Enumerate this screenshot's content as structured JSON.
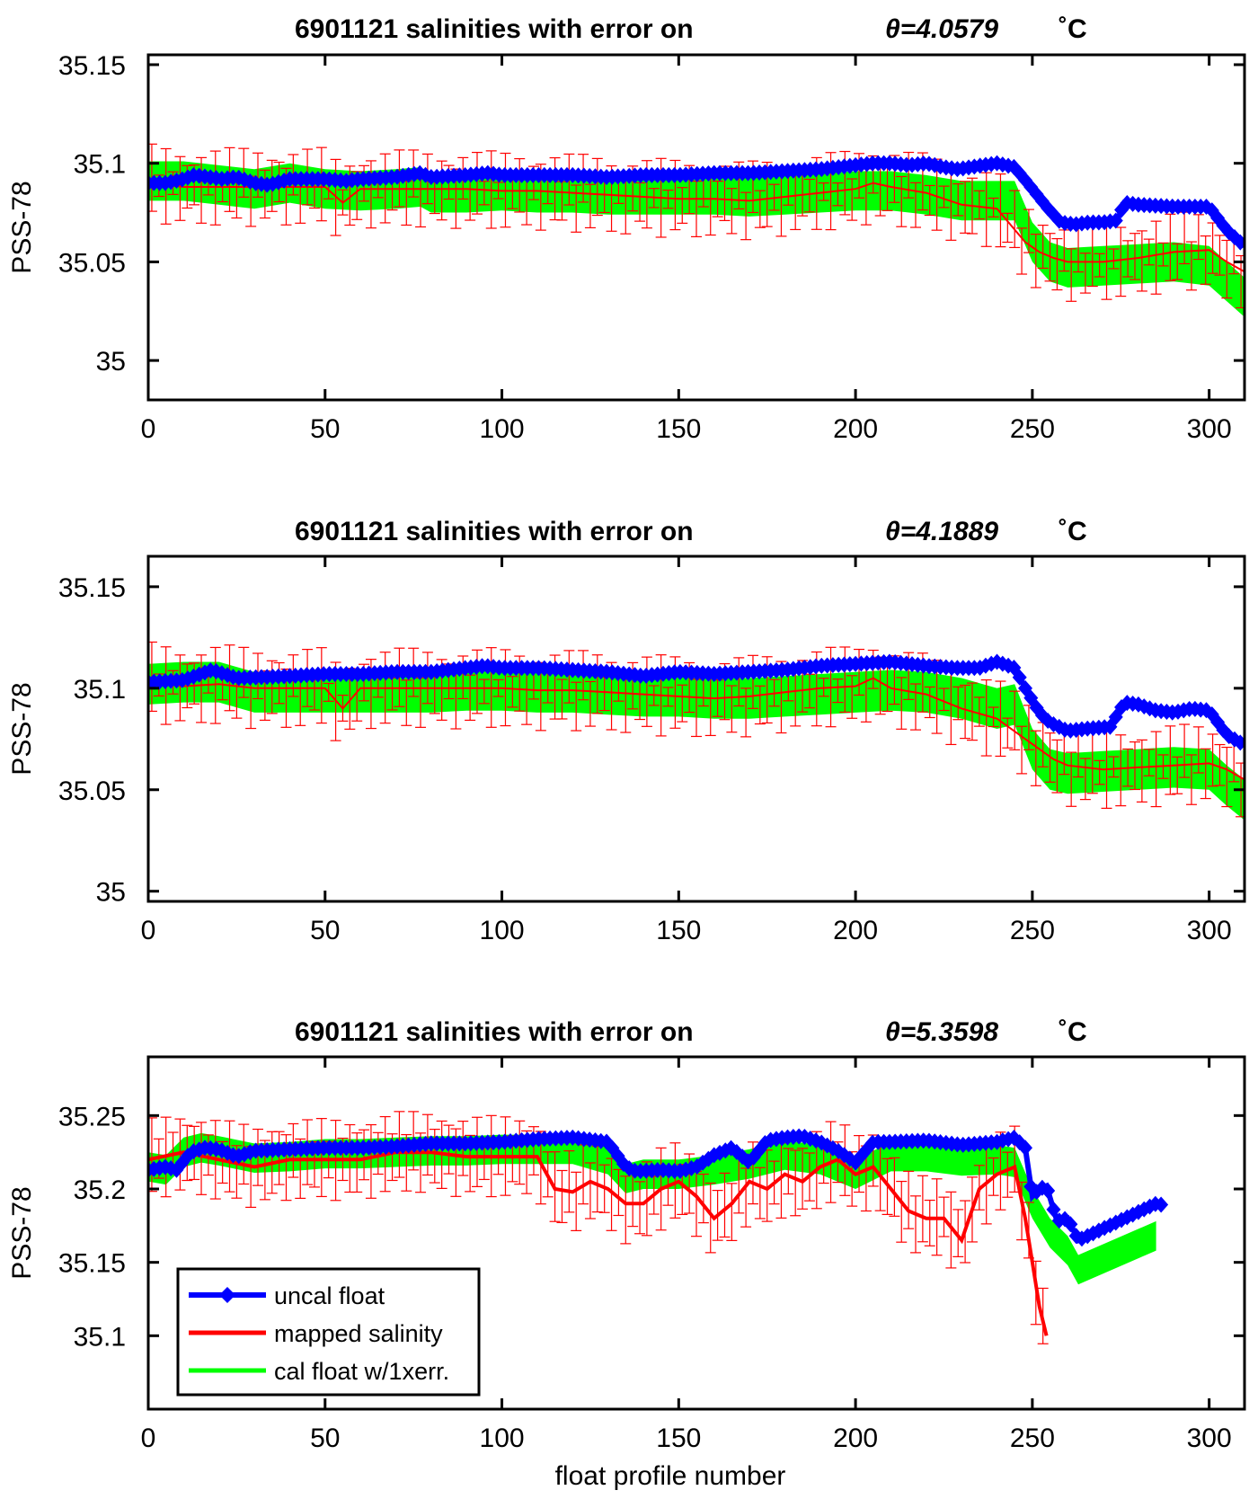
{
  "figure": {
    "xlabel": "float profile number",
    "legend": {
      "placement": "bottom-left",
      "entries": [
        {
          "label": "uncal float",
          "color": "#0000ff"
        },
        {
          "label": "mapped salinity",
          "color": "#ff0000"
        },
        {
          "label": "cal float w/1xerr.",
          "color": "#00ff00"
        }
      ]
    }
  },
  "chart_data": [
    {
      "type": "line",
      "title_main": "6901121 salinities with error on",
      "title_theta": "θ=4.0579",
      "title_unit": "˚C",
      "ylabel": "PSS-78",
      "xlim": [
        0,
        310
      ],
      "ylim": [
        34.98,
        35.155
      ],
      "xticks": [
        0,
        50,
        100,
        150,
        200,
        250,
        300
      ],
      "yticks": [
        35,
        35.05,
        35.1,
        35.15
      ],
      "ytick_labels": [
        "35",
        "35.05",
        "35.1",
        "35.15"
      ],
      "series": [
        {
          "name": "uncal float",
          "color": "#0000ff",
          "x": [
            0,
            5,
            10,
            13,
            21,
            25,
            30,
            34,
            40,
            50,
            56,
            60,
            70,
            77,
            80,
            90,
            96,
            100,
            110,
            120,
            130,
            140,
            150,
            160,
            170,
            180,
            190,
            200,
            205,
            210,
            215,
            220,
            225,
            229,
            236,
            240,
            245,
            250,
            254,
            258,
            262,
            266,
            270,
            274,
            276,
            280,
            290,
            300,
            305,
            310
          ],
          "y": [
            35.09,
            35.09,
            35.092,
            35.094,
            35.092,
            35.093,
            35.09,
            35.089,
            35.092,
            35.092,
            35.091,
            35.092,
            35.093,
            35.095,
            35.093,
            35.094,
            35.095,
            35.094,
            35.094,
            35.094,
            35.093,
            35.094,
            35.094,
            35.095,
            35.095,
            35.096,
            35.097,
            35.099,
            35.1,
            35.1,
            35.099,
            35.1,
            35.098,
            35.097,
            35.099,
            35.1,
            35.098,
            35.087,
            35.078,
            35.07,
            35.069,
            35.07,
            35.07,
            35.071,
            35.08,
            35.079,
            35.078,
            35.078,
            35.066,
            35.058
          ]
        },
        {
          "name": "mapped salinity",
          "color": "#ff0000",
          "x": [
            0,
            10,
            20,
            30,
            40,
            50,
            55,
            60,
            70,
            80,
            90,
            100,
            110,
            120,
            130,
            140,
            150,
            160,
            170,
            180,
            190,
            200,
            205,
            210,
            220,
            230,
            240,
            248,
            252,
            256,
            260,
            270,
            280,
            290,
            300,
            305,
            310
          ],
          "y": [
            35.09,
            35.088,
            35.088,
            35.088,
            35.088,
            35.088,
            35.08,
            35.087,
            35.087,
            35.087,
            35.087,
            35.086,
            35.086,
            35.085,
            35.084,
            35.083,
            35.082,
            35.082,
            35.081,
            35.083,
            35.085,
            35.087,
            35.09,
            35.088,
            35.085,
            35.079,
            35.077,
            35.06,
            35.055,
            35.052,
            35.05,
            35.05,
            35.052,
            35.055,
            35.056,
            35.05,
            35.045
          ]
        },
        {
          "name": "cal float w/1xerr.",
          "color": "#00ff00",
          "x": [
            0,
            10,
            20,
            30,
            40,
            50,
            60,
            70,
            77,
            80,
            90,
            100,
            110,
            120,
            130,
            140,
            150,
            160,
            170,
            180,
            190,
            200,
            210,
            220,
            230,
            240,
            245,
            250,
            255,
            260,
            270,
            280,
            290,
            300,
            305,
            310
          ],
          "y": [
            35.091,
            35.091,
            35.089,
            35.087,
            35.09,
            35.087,
            35.086,
            35.087,
            35.088,
            35.085,
            35.085,
            35.086,
            35.085,
            35.085,
            35.084,
            35.084,
            35.084,
            35.084,
            35.083,
            35.084,
            35.085,
            35.086,
            35.086,
            35.084,
            35.081,
            35.081,
            35.081,
            35.06,
            35.05,
            35.047,
            35.048,
            35.049,
            35.05,
            35.048,
            35.04,
            35.032
          ],
          "err": 0.01
        }
      ],
      "error_bar_width": 0.024
    },
    {
      "type": "line",
      "title_main": "6901121 salinities with error on",
      "title_theta": "θ=4.1889",
      "title_unit": "˚C",
      "ylabel": "PSS-78",
      "xlim": [
        0,
        310
      ],
      "ylim": [
        34.995,
        35.165
      ],
      "xticks": [
        0,
        50,
        100,
        150,
        200,
        250,
        300
      ],
      "yticks": [
        35,
        35.05,
        35.1,
        35.15
      ],
      "ytick_labels": [
        "35",
        "35.05",
        "35.1",
        "35.15"
      ],
      "series": [
        {
          "name": "uncal float",
          "color": "#0000ff",
          "x": [
            0,
            10,
            18,
            25,
            40,
            50,
            60,
            70,
            80,
            95,
            100,
            110,
            120,
            130,
            140,
            150,
            160,
            170,
            180,
            190,
            200,
            210,
            215,
            220,
            228,
            235,
            240,
            245,
            248,
            252,
            255,
            260,
            265,
            272,
            276,
            280,
            285,
            290,
            295,
            300,
            305,
            310
          ],
          "y": [
            35.103,
            35.104,
            35.109,
            35.105,
            35.106,
            35.107,
            35.107,
            35.108,
            35.108,
            35.111,
            35.11,
            35.11,
            35.109,
            35.108,
            35.106,
            35.108,
            35.107,
            35.108,
            35.109,
            35.111,
            35.112,
            35.113,
            35.112,
            35.111,
            35.11,
            35.11,
            35.113,
            35.11,
            35.1,
            35.088,
            35.083,
            35.079,
            35.08,
            35.081,
            35.093,
            35.092,
            35.089,
            35.088,
            35.09,
            35.089,
            35.077,
            35.072
          ]
        },
        {
          "name": "mapped salinity",
          "color": "#ff0000",
          "x": [
            0,
            10,
            20,
            30,
            40,
            50,
            55,
            60,
            70,
            80,
            90,
            100,
            110,
            120,
            130,
            140,
            150,
            160,
            170,
            180,
            190,
            200,
            205,
            210,
            220,
            230,
            240,
            248,
            252,
            256,
            260,
            270,
            280,
            290,
            300,
            305,
            310
          ],
          "y": [
            35.103,
            35.101,
            35.102,
            35.1,
            35.1,
            35.1,
            35.09,
            35.1,
            35.1,
            35.1,
            35.1,
            35.1,
            35.099,
            35.099,
            35.098,
            35.097,
            35.096,
            35.095,
            35.096,
            35.098,
            35.1,
            35.101,
            35.105,
            35.1,
            35.097,
            35.09,
            35.085,
            35.075,
            35.07,
            35.065,
            35.062,
            35.06,
            35.061,
            35.062,
            35.063,
            35.06,
            35.055
          ]
        },
        {
          "name": "cal float w/1xerr.",
          "color": "#00ff00",
          "x": [
            0,
            10,
            20,
            30,
            40,
            50,
            60,
            70,
            80,
            90,
            100,
            110,
            120,
            130,
            140,
            150,
            160,
            170,
            180,
            190,
            200,
            210,
            220,
            230,
            240,
            245,
            250,
            255,
            260,
            270,
            280,
            290,
            300,
            305,
            310
          ],
          "y": [
            35.102,
            35.103,
            35.103,
            35.098,
            35.098,
            35.098,
            35.098,
            35.098,
            35.098,
            35.099,
            35.099,
            35.098,
            35.098,
            35.097,
            35.096,
            35.096,
            35.095,
            35.095,
            35.096,
            35.097,
            35.098,
            35.099,
            35.098,
            35.095,
            35.09,
            35.092,
            35.07,
            35.06,
            35.058,
            35.059,
            35.06,
            35.061,
            35.06,
            35.052,
            35.045
          ],
          "err": 0.01
        }
      ],
      "error_bar_width": 0.024
    },
    {
      "type": "line",
      "title_main": "6901121 salinities with error on",
      "title_theta": "θ=5.3598",
      "title_unit": "˚C",
      "ylabel": "PSS-78",
      "xlim": [
        0,
        310
      ],
      "ylim": [
        35.05,
        35.29
      ],
      "xticks": [
        0,
        50,
        100,
        150,
        200,
        250,
        300
      ],
      "yticks": [
        35.1,
        35.15,
        35.2,
        35.25
      ],
      "ytick_labels": [
        "35.1",
        "35.15",
        "35.2",
        "35.25"
      ],
      "series": [
        {
          "name": "uncal float",
          "color": "#0000ff",
          "x": [
            0,
            5,
            8,
            12,
            16,
            20,
            25,
            30,
            40,
            50,
            60,
            70,
            80,
            90,
            100,
            110,
            120,
            130,
            135,
            138,
            145,
            150,
            155,
            160,
            165,
            170,
            175,
            180,
            185,
            190,
            195,
            200,
            205,
            210,
            220,
            230,
            240,
            245,
            248,
            250,
            252,
            254,
            257,
            260,
            263,
            285,
            287
          ],
          "y": [
            35.213,
            35.215,
            35.213,
            35.225,
            35.228,
            35.227,
            35.222,
            35.226,
            35.227,
            35.228,
            35.228,
            35.229,
            35.231,
            35.231,
            35.232,
            35.234,
            35.235,
            35.232,
            35.215,
            35.212,
            35.213,
            35.212,
            35.215,
            35.223,
            35.228,
            35.218,
            35.233,
            35.235,
            35.236,
            35.232,
            35.226,
            35.218,
            35.232,
            35.232,
            35.233,
            35.23,
            35.232,
            35.235,
            35.228,
            35.195,
            35.2,
            35.202,
            35.178,
            35.18,
            35.165,
            35.19,
            35.189
          ]
        },
        {
          "name": "mapped salinity",
          "color": "#ff0000",
          "x": [
            0,
            10,
            20,
            30,
            40,
            50,
            60,
            70,
            80,
            90,
            100,
            110,
            115,
            120,
            125,
            130,
            135,
            140,
            145,
            150,
            155,
            160,
            165,
            170,
            175,
            180,
            185,
            190,
            195,
            200,
            205,
            210,
            215,
            220,
            225,
            230,
            235,
            240,
            245,
            248,
            250,
            252,
            254
          ],
          "y": [
            35.22,
            35.225,
            35.22,
            35.215,
            35.22,
            35.22,
            35.22,
            35.225,
            35.225,
            35.222,
            35.222,
            35.222,
            35.2,
            35.198,
            35.205,
            35.2,
            35.19,
            35.19,
            35.2,
            35.205,
            35.195,
            35.18,
            35.19,
            35.205,
            35.2,
            35.21,
            35.205,
            35.215,
            35.22,
            35.21,
            35.215,
            35.2,
            35.185,
            35.18,
            35.18,
            35.165,
            35.2,
            35.21,
            35.215,
            35.18,
            35.15,
            35.12,
            35.1
          ]
        },
        {
          "name": "cal float w/1xerr.",
          "color": "#00ff00",
          "x": [
            0,
            5,
            10,
            15,
            20,
            30,
            40,
            50,
            60,
            70,
            80,
            90,
            100,
            110,
            120,
            130,
            135,
            140,
            150,
            160,
            170,
            180,
            190,
            200,
            210,
            220,
            230,
            240,
            245,
            250,
            255,
            260,
            263,
            285
          ],
          "y": [
            35.215,
            35.213,
            35.225,
            35.228,
            35.226,
            35.221,
            35.222,
            35.224,
            35.224,
            35.225,
            35.226,
            35.226,
            35.227,
            35.227,
            35.227,
            35.22,
            35.207,
            35.21,
            35.21,
            35.213,
            35.217,
            35.223,
            35.22,
            35.21,
            35.222,
            35.222,
            35.219,
            35.22,
            35.218,
            35.19,
            35.17,
            35.158,
            35.145,
            35.168
          ],
          "err": 0.01
        }
      ],
      "error_bar_width": 0.04
    }
  ]
}
